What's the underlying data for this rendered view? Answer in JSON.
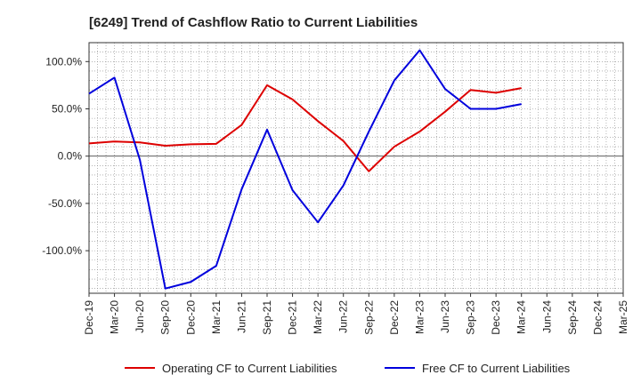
{
  "chart_data": {
    "type": "line",
    "title": "[6249]  Trend of Cashflow Ratio to Current Liabilities",
    "xlabel": "",
    "ylabel": "",
    "ylim": [
      -145,
      120
    ],
    "yticks": [
      100,
      50,
      0,
      -50,
      -100
    ],
    "ytick_labels": [
      "100.0%",
      "50.0%",
      "0.0%",
      "-50.0%",
      "-100.0%"
    ],
    "grid": true,
    "legend_position": "bottom",
    "x": [
      "Dec-19",
      "Mar-20",
      "Jun-20",
      "Sep-20",
      "Dec-20",
      "Mar-21",
      "Jun-21",
      "Sep-21",
      "Dec-21",
      "Mar-22",
      "Jun-22",
      "Sep-22",
      "Dec-22",
      "Mar-23",
      "Jun-23",
      "Sep-23",
      "Dec-23",
      "Mar-24",
      "Jun-24",
      "Sep-24",
      "Dec-24",
      "Mar-25"
    ],
    "series": [
      {
        "name": "Operating CF to Current Liabilities",
        "color": "#dd0000",
        "values": [
          13.5,
          15.5,
          14.5,
          11.0,
          12.5,
          13.0,
          33.0,
          75.0,
          60.0,
          37.0,
          16.0,
          -16.0,
          10.0,
          26.0,
          47.0,
          70.0,
          67.0,
          72.0,
          null,
          null,
          null,
          null
        ]
      },
      {
        "name": "Free CF to Current Liabilities",
        "color": "#0000dd",
        "values": [
          66.0,
          83.0,
          -4.0,
          -140.0,
          -133.0,
          -116.0,
          -35.0,
          28.0,
          -36.0,
          -70.0,
          -31.0,
          26.0,
          80.0,
          112.0,
          71.0,
          50.0,
          50.0,
          55.0,
          null,
          null,
          null,
          null
        ]
      }
    ]
  }
}
